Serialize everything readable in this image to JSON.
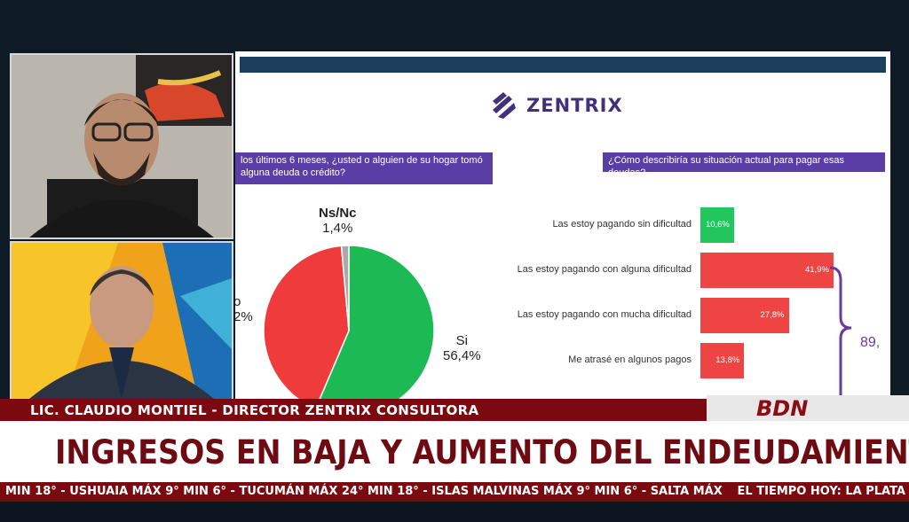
{
  "slide": {
    "brand": "ZENTRIX",
    "question_left": "los últimos 6 meses, ¿usted o alguien de su hogar tomó alguna deuda o crédito?",
    "question_right": "¿Cómo describiría su situación actual para pagar esas deudas?",
    "pie": {
      "si_label": "Si",
      "si_value": "56,4%",
      "nsnc_label": "Ns/Nc",
      "nsnc_value": "1,4%",
      "no_label_partial": "o",
      "no_value_partial": "2%",
      "si_pct": 56.4,
      "nsnc_pct": 1.4,
      "no_pct": 42.2,
      "colors": {
        "si": "#1db954",
        "no": "#ef3b3b",
        "nsnc": "#a9a9a9"
      }
    },
    "bars": [
      {
        "label": "Las estoy pagando sin dificultad",
        "value_text": "10,6%",
        "value": 10.6,
        "color": "#22c55e"
      },
      {
        "label": "Las estoy pagando con alguna dificultad",
        "value_text": "41,9%",
        "value": 41.9,
        "color": "#ef4444"
      },
      {
        "label": "Las estoy pagando con mucha dificultad",
        "value_text": "27,8%",
        "value": 27.8,
        "color": "#ef4444"
      },
      {
        "label": "Me atrasé en algunos pagos",
        "value_text": "13,8%",
        "value": 13.8,
        "color": "#ef4444"
      }
    ],
    "brace_value": "89,"
  },
  "lower_third": {
    "name": "LIC. CLAUDIO MONTIEL - DIRECTOR ZENTRIX CONSULTORA",
    "channel": "BDN",
    "headline": "INGRESOS EN BAJA Y AUMENTO DEL ENDEUDAMIENTO"
  },
  "ticker": {
    "text": "MIN 18° - USHUAIA MÁX 9° MIN 6° - TUCUMÁN MÁX 24° MIN 18° - ISLAS MALVINAS MÁX 9° MIN 6° - SALTA MÁX",
    "right": "EL TIEMPO HOY: LA PLATA"
  }
}
